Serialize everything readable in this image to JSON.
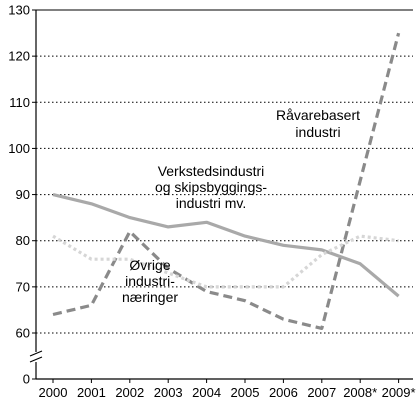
{
  "chart_data": {
    "type": "line",
    "title": "",
    "xlabel": "",
    "ylabel": "",
    "x": [
      "2000",
      "2001",
      "2002",
      "2003",
      "2004",
      "2005",
      "2006",
      "2007",
      "2008*",
      "2009*"
    ],
    "ylim": [
      60,
      130
    ],
    "yticks": [
      0,
      60,
      70,
      80,
      90,
      100,
      110,
      120,
      130
    ],
    "axis_break": true,
    "grid": "horizontal dotted",
    "series": [
      {
        "name": "Verkstedsindustri og skipsbyggingsindustri mv.",
        "label_lines": [
          "Verkstedsindustri",
          "og skipsbyggings-",
          "industri mv."
        ],
        "style": "solid",
        "color": "#a9a9a9",
        "values": [
          90,
          88,
          85,
          83,
          84,
          81,
          79,
          78,
          75,
          68
        ]
      },
      {
        "name": "Råvarebasert industri",
        "label_lines": [
          "Råvarebasert",
          "industri"
        ],
        "style": "dashed",
        "color": "#8a8a8a",
        "values": [
          64,
          66,
          82,
          74,
          69,
          67,
          63,
          61,
          93,
          125
        ]
      },
      {
        "name": "Øvrige industrinæringer",
        "label_lines": [
          "Øvrige",
          "industri-",
          "næringer"
        ],
        "style": "dotted",
        "color": "#d6d6d6",
        "values": [
          81,
          76,
          76,
          73,
          70,
          70,
          70,
          77,
          81,
          80
        ]
      }
    ]
  }
}
